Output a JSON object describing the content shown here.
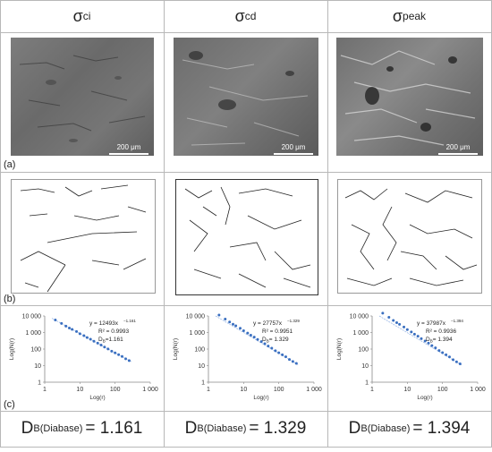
{
  "columns": [
    {
      "symbol": "σ",
      "subscript": "ci"
    },
    {
      "symbol": "σ",
      "subscript": "cd"
    },
    {
      "symbol": "σ",
      "subscript": "peak"
    }
  ],
  "panel_labels": {
    "a": "(a)",
    "b": "(b)",
    "c": "(c)"
  },
  "scale_bar_label": "200 μm",
  "plots": [
    {
      "equation": "y = 12493x",
      "exponent": "−1.161",
      "r2": "R² = 0.9993",
      "db_label": "D",
      "db_sub": "B",
      "db_value": "=1.161"
    },
    {
      "equation": "y = 27757x",
      "exponent": "−1.329",
      "r2": "R² = 0.9951",
      "db_label": "D",
      "db_sub": "B",
      "db_value": "= 1.329"
    },
    {
      "equation": "y = 37987x",
      "exponent": "−1.394",
      "r2": "R² = 0.9936",
      "db_label": "D",
      "db_sub": "B",
      "db_value": "= 1.394"
    }
  ],
  "axis": {
    "ylabel": "Log(N(r)",
    "xlabel": "Log(r)",
    "yticks": [
      "1",
      "10",
      "100",
      "1 000",
      "10 000"
    ],
    "xticks": [
      "1",
      "10",
      "100",
      "1 000"
    ]
  },
  "results": [
    {
      "prefix": "D",
      "sub": "B(Diabase)",
      "value": "= 1.161"
    },
    {
      "prefix": "D",
      "sub": "B(Diabase)",
      "value": "= 1.329"
    },
    {
      "prefix": "D",
      "sub": "B(Diabase)",
      "value": "= 1.394"
    }
  ],
  "chart_data": [
    {
      "type": "scatter",
      "xscale": "log",
      "yscale": "log",
      "xlim": [
        1,
        1000
      ],
      "ylim": [
        1,
        10000
      ],
      "fit": {
        "a": 12493,
        "b": -1.161
      },
      "x": [
        2,
        3,
        4,
        5,
        6,
        8,
        10,
        13,
        16,
        20,
        25,
        32,
        40,
        50,
        63,
        80,
        100,
        126,
        158,
        200,
        251
      ],
      "color": "#3a6fc0"
    },
    {
      "type": "scatter",
      "xscale": "log",
      "yscale": "log",
      "xlim": [
        1,
        1000
      ],
      "ylim": [
        1,
        10000
      ],
      "fit": {
        "a": 27757,
        "b": -1.329
      },
      "x": [
        2,
        3,
        4,
        5,
        6,
        8,
        10,
        13,
        16,
        20,
        25,
        32,
        40,
        50,
        63,
        80,
        100,
        126,
        158,
        200,
        251,
        316
      ],
      "color": "#3a6fc0"
    },
    {
      "type": "scatter",
      "xscale": "log",
      "yscale": "log",
      "xlim": [
        1,
        1000
      ],
      "ylim": [
        1,
        10000
      ],
      "fit": {
        "a": 37987,
        "b": -1.394
      },
      "x": [
        2,
        3,
        4,
        5,
        6,
        8,
        10,
        13,
        16,
        20,
        25,
        32,
        40,
        50,
        63,
        80,
        100,
        126,
        158,
        200,
        251,
        316
      ],
      "color": "#3a6fc0"
    }
  ]
}
